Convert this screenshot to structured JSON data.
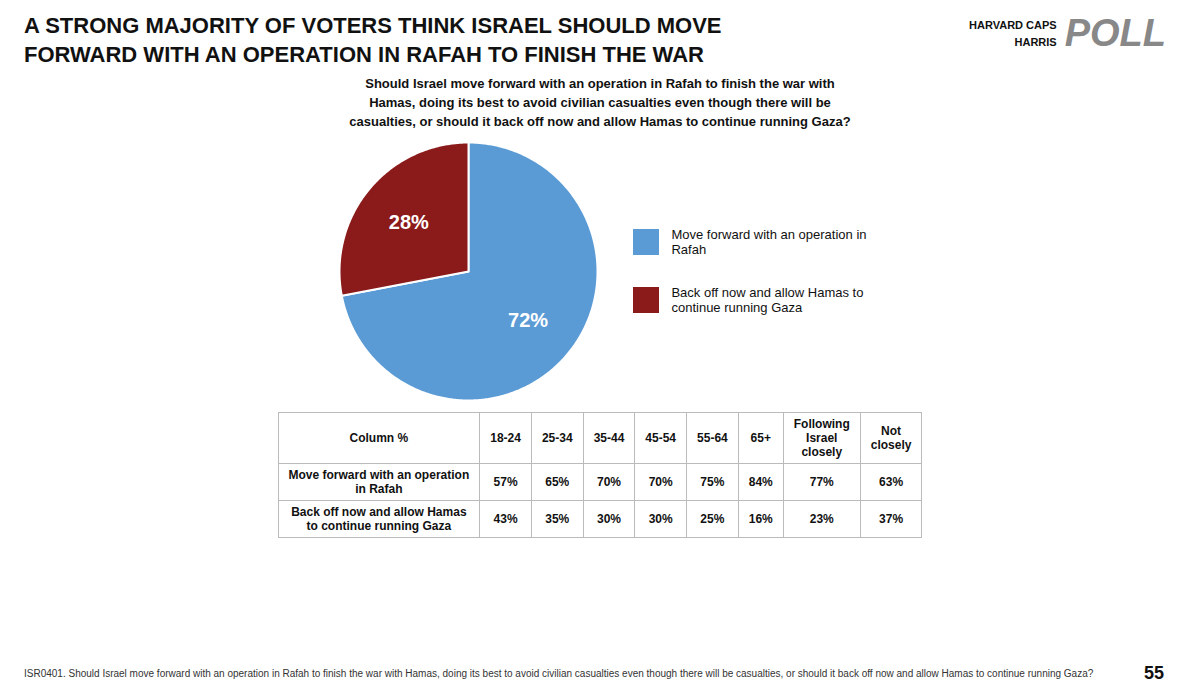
{
  "chart_data": [
    {
      "type": "pie",
      "title": "A STRONG MAJORITY OF VOTERS THINK ISRAEL SHOULD MOVE\nFORWARD WITH AN OPERATION IN RAFAH TO FINISH THE WAR",
      "subtitle": "Should Israel move forward with an operation in Rafah to finish the war with\nHamas, doing its best to avoid civilian casualties even though there will be\ncasualties, or should it back off now and allow Hamas to continue running Gaza?",
      "categories": [
        "Move forward with an operation in\nRafah",
        "Back off now and allow Hamas to\ncontinue running Gaza"
      ],
      "values": [
        72,
        28
      ],
      "value_labels": [
        "72%",
        "28%"
      ],
      "colors": [
        "#5b9bd5",
        "#8b1a1a"
      ],
      "data_labels": true,
      "legend": "right",
      "annotations": [
        "HARVARD CAPS",
        "HARRIS",
        "POLL",
        "ISR0401. Should Israel move forward with an operation in Rafah to finish the war with Hamas, doing its best to avoid civilian casualties even though there will be casualties, or should it back off now and allow Hamas to continue running Gaza?",
        "55"
      ]
    },
    {
      "type": "table",
      "ylabel": "Column %",
      "categories": [
        "18-24",
        "25-34",
        "35-44",
        "45-54",
        "55-64",
        "65+",
        "Following\nIsrael\nclosely",
        "Not\nclosely"
      ],
      "series": [
        {
          "name": "Move forward with an operation\nin Rafah",
          "values": [
            57,
            65,
            70,
            70,
            75,
            84,
            77,
            63
          ],
          "value_labels": [
            "57%",
            "65%",
            "70%",
            "70%",
            "75%",
            "84%",
            "77%",
            "63%"
          ]
        },
        {
          "name": "Back off now and allow Hamas\nto continue running Gaza",
          "values": [
            43,
            35,
            30,
            30,
            25,
            16,
            23,
            37
          ],
          "value_labels": [
            "43%",
            "35%",
            "30%",
            "30%",
            "25%",
            "16%",
            "23%",
            "37%"
          ]
        }
      ]
    }
  ]
}
